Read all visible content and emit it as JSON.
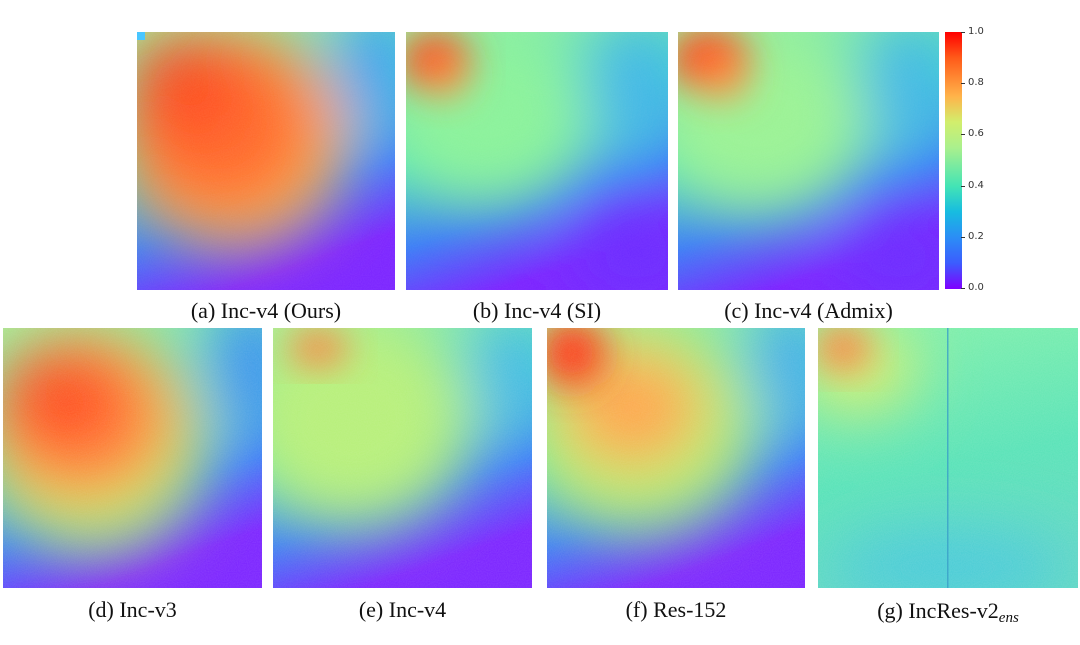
{
  "figure": {
    "colorbar": {
      "ticks": [
        "1.0",
        "0.8",
        "0.6",
        "0.4",
        "0.2",
        "0.0"
      ],
      "colormap": "rainbow",
      "range": [
        0.0,
        1.0
      ]
    },
    "panels": [
      {
        "id": "a",
        "caption": "(a) Inc-v4 (Ours)",
        "hot_region": "large upper-left region"
      },
      {
        "id": "b",
        "caption": "(b) Inc-v4 (SI)",
        "hot_region": "small top-left corner"
      },
      {
        "id": "c",
        "caption": "(c) Inc-v4 (Admix)",
        "hot_region": "small top-left corner"
      },
      {
        "id": "d",
        "caption": "(d) Inc-v3",
        "hot_region": "large upper-left region"
      },
      {
        "id": "e",
        "caption": "(e) Inc-v4",
        "hot_region": "faint top-left corner"
      },
      {
        "id": "f",
        "caption": "(f) Res-152",
        "hot_region": "top-left corner and center-left"
      },
      {
        "id": "g",
        "caption_main": "(g) IncRes-v2",
        "caption_sub": "ens",
        "hot_region": "faint top-left corner, mostly uniform"
      }
    ]
  }
}
